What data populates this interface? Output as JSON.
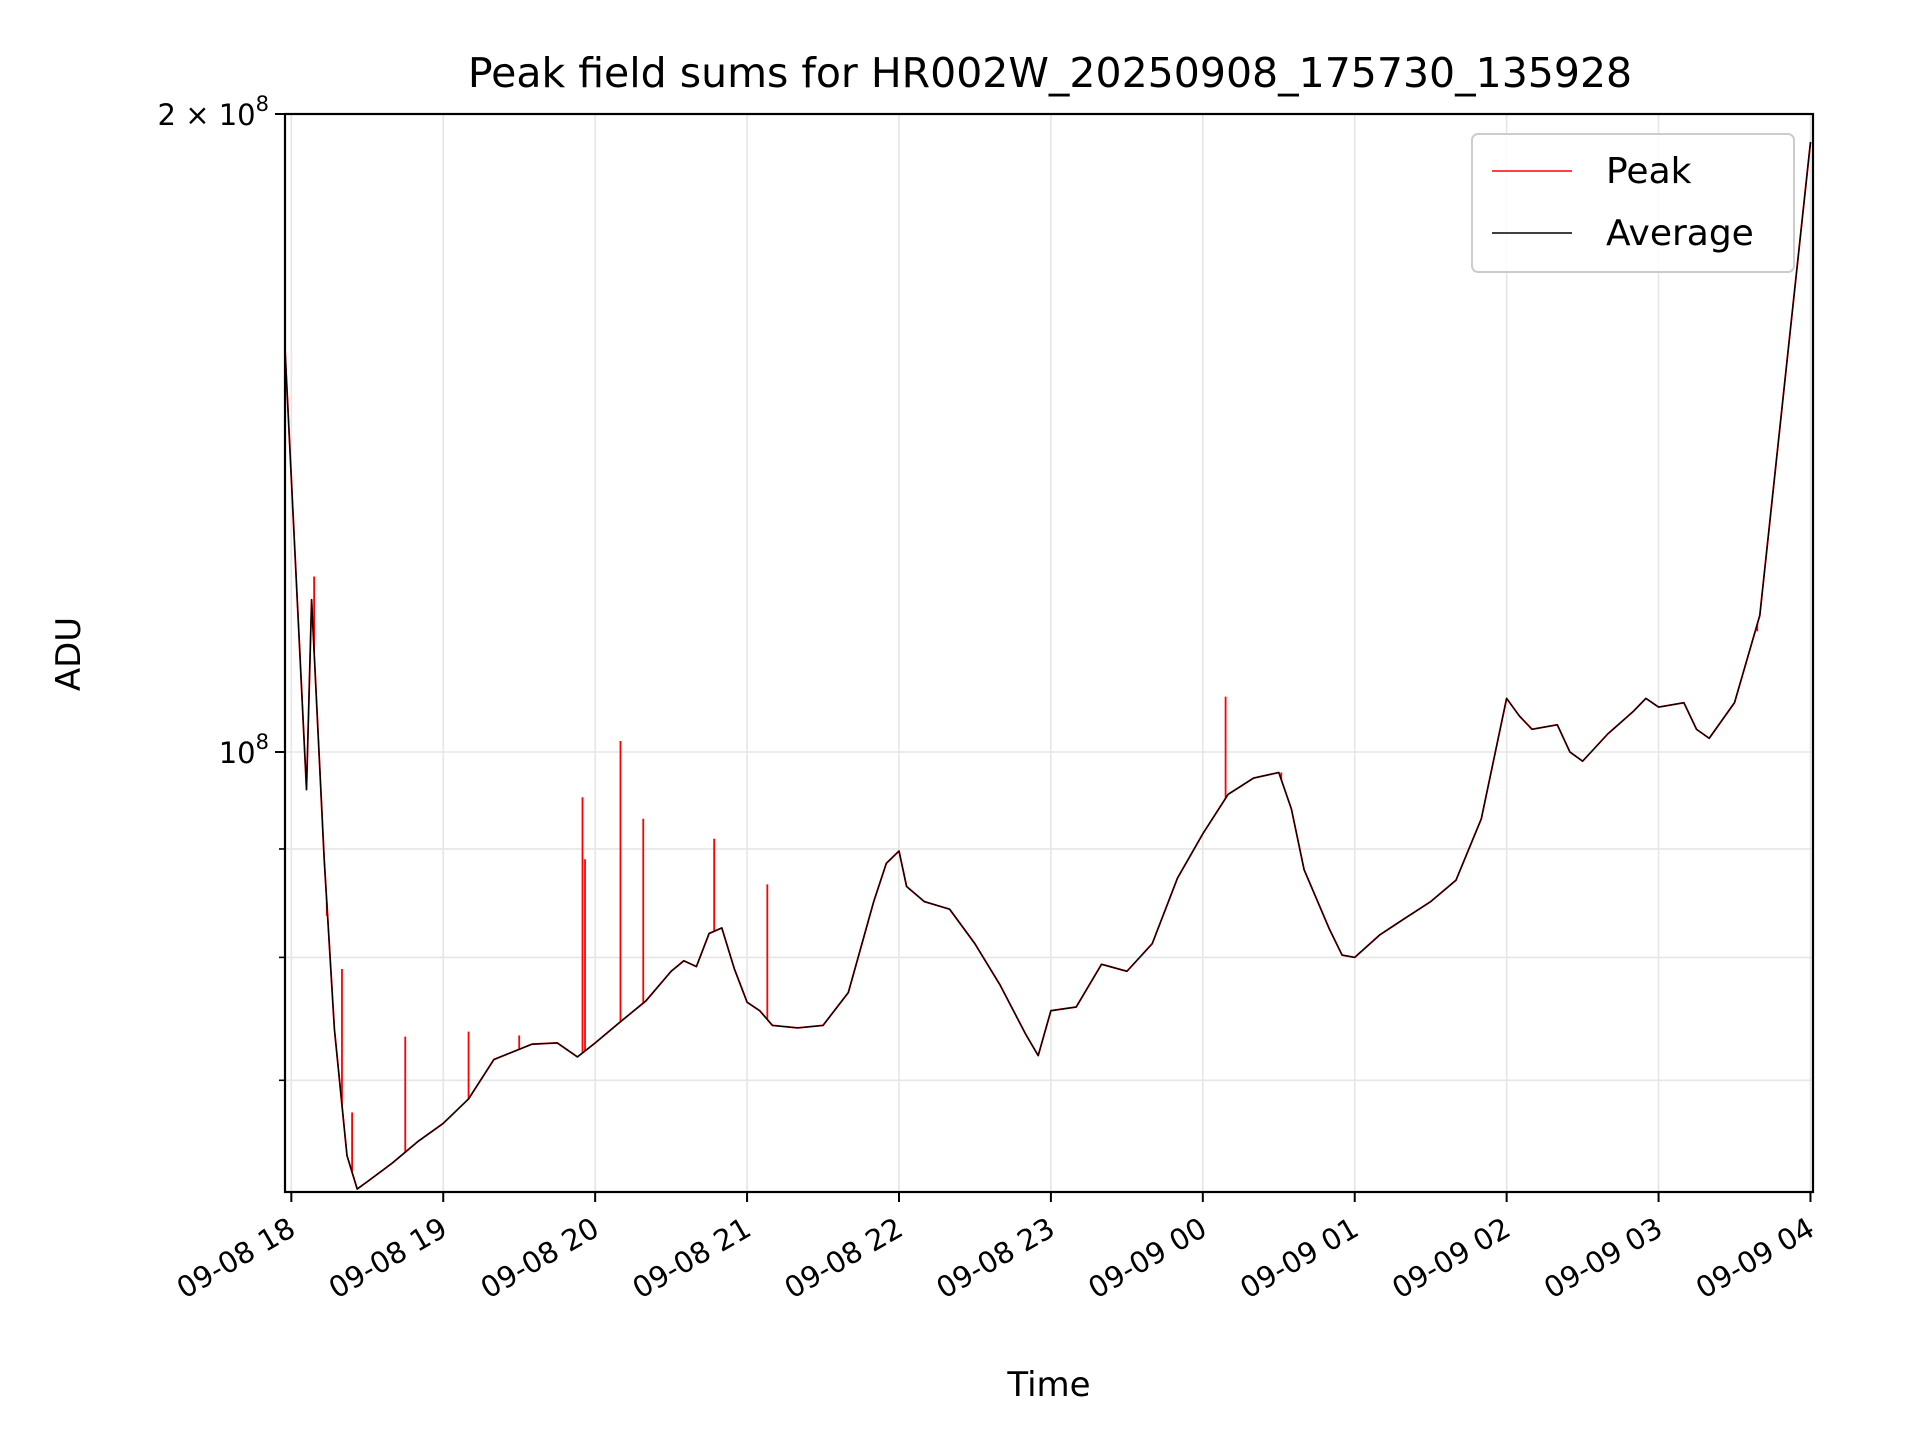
{
  "chart_data": {
    "type": "line",
    "title": "Peak field sums for HR002W_20250908_175730_135928",
    "xlabel": "Time",
    "ylabel": "ADU",
    "yscale": "log",
    "grid": true,
    "legend_position": "top-right",
    "xlim": [
      "2025-09-08 17:57:30",
      "2025-09-09 04:01:00"
    ],
    "ylim": [
      62000000,
      200000000
    ],
    "x_ticks": [
      {
        "t": "2025-09-08 18:00",
        "label": "09-08 18"
      },
      {
        "t": "2025-09-08 19:00",
        "label": "09-08 19"
      },
      {
        "t": "2025-09-08 20:00",
        "label": "09-08 20"
      },
      {
        "t": "2025-09-08 21:00",
        "label": "09-08 21"
      },
      {
        "t": "2025-09-08 22:00",
        "label": "09-08 22"
      },
      {
        "t": "2025-09-08 23:00",
        "label": "09-08 23"
      },
      {
        "t": "2025-09-09 00:00",
        "label": "09-09 00"
      },
      {
        "t": "2025-09-09 01:00",
        "label": "09-09 01"
      },
      {
        "t": "2025-09-09 02:00",
        "label": "09-09 02"
      },
      {
        "t": "2025-09-09 03:00",
        "label": "09-09 03"
      },
      {
        "t": "2025-09-09 04:00",
        "label": "09-09 04"
      }
    ],
    "y_major_ticks": [
      {
        "v": 100000000,
        "base": "10",
        "exp": "8",
        "coef": ""
      },
      {
        "v": 200000000,
        "base": "10",
        "exp": "8",
        "coef": "2 × "
      }
    ],
    "y_minor_ticks": [
      70000000,
      80000000,
      90000000
    ],
    "series": [
      {
        "name": "Average",
        "color": "#000000",
        "points": [
          [
            "2025-09-08 17:57:30",
            155000000
          ],
          [
            "2025-09-08 18:06:00",
            96000000
          ],
          [
            "2025-09-08 18:08:00",
            118000000
          ],
          [
            "2025-09-08 18:13:00",
            89000000
          ],
          [
            "2025-09-08 18:17:00",
            74000000
          ],
          [
            "2025-09-08 18:22:00",
            64500000
          ],
          [
            "2025-09-08 18:26:00",
            62200000
          ],
          [
            "2025-09-08 18:30:00",
            62700000
          ],
          [
            "2025-09-08 18:40:00",
            64000000
          ],
          [
            "2025-09-08 18:50:00",
            65500000
          ],
          [
            "2025-09-08 19:00:00",
            66800000
          ],
          [
            "2025-09-08 19:10:00",
            68600000
          ],
          [
            "2025-09-08 19:20:00",
            71600000
          ],
          [
            "2025-09-08 19:35:00",
            72800000
          ],
          [
            "2025-09-08 19:45:00",
            72900000
          ],
          [
            "2025-09-08 19:53:00",
            71800000
          ],
          [
            "2025-09-08 20:00:00",
            72900000
          ],
          [
            "2025-09-08 20:10:00",
            74600000
          ],
          [
            "2025-09-08 20:20:00",
            76300000
          ],
          [
            "2025-09-08 20:30:00",
            78800000
          ],
          [
            "2025-09-08 20:35:00",
            79700000
          ],
          [
            "2025-09-08 20:40:00",
            79200000
          ],
          [
            "2025-09-08 20:45:00",
            82100000
          ],
          [
            "2025-09-08 20:50:00",
            82600000
          ],
          [
            "2025-09-08 20:55:00",
            79000000
          ],
          [
            "2025-09-08 21:00:00",
            76200000
          ],
          [
            "2025-09-08 21:05:00",
            75500000
          ],
          [
            "2025-09-08 21:10:00",
            74300000
          ],
          [
            "2025-09-08 21:20:00",
            74100000
          ],
          [
            "2025-09-08 21:30:00",
            74300000
          ],
          [
            "2025-09-08 21:40:00",
            77000000
          ],
          [
            "2025-09-08 21:50:00",
            85000000
          ],
          [
            "2025-09-08 21:55:00",
            88600000
          ],
          [
            "2025-09-08 22:00:00",
            89800000
          ],
          [
            "2025-09-08 22:03:00",
            86400000
          ],
          [
            "2025-09-08 22:10:00",
            85000000
          ],
          [
            "2025-09-08 22:20:00",
            84300000
          ],
          [
            "2025-09-08 22:30:00",
            81200000
          ],
          [
            "2025-09-08 22:40:00",
            77600000
          ],
          [
            "2025-09-08 22:50:00",
            73600000
          ],
          [
            "2025-09-08 22:55:00",
            71900000
          ],
          [
            "2025-09-08 23:00:00",
            75500000
          ],
          [
            "2025-09-08 23:10:00",
            75800000
          ],
          [
            "2025-09-08 23:20:00",
            79400000
          ],
          [
            "2025-09-08 23:30:00",
            78800000
          ],
          [
            "2025-09-08 23:40:00",
            81200000
          ],
          [
            "2025-09-08 23:50:00",
            87200000
          ],
          [
            "2025-09-09 00:00:00",
            91500000
          ],
          [
            "2025-09-09 00:10:00",
            95500000
          ],
          [
            "2025-09-09 00:20:00",
            97200000
          ],
          [
            "2025-09-09 00:30:00",
            97800000
          ],
          [
            "2025-09-09 00:35:00",
            94000000
          ],
          [
            "2025-09-09 00:40:00",
            88000000
          ],
          [
            "2025-09-09 00:50:00",
            82500000
          ],
          [
            "2025-09-09 00:55:00",
            80200000
          ],
          [
            "2025-09-09 01:00:00",
            80000000
          ],
          [
            "2025-09-09 01:10:00",
            82000000
          ],
          [
            "2025-09-09 01:20:00",
            83500000
          ],
          [
            "2025-09-09 01:30:00",
            85000000
          ],
          [
            "2025-09-09 01:40:00",
            87000000
          ],
          [
            "2025-09-09 01:50:00",
            93000000
          ],
          [
            "2025-09-09 02:00:00",
            106000000
          ],
          [
            "2025-09-09 02:05:00",
            104000000
          ],
          [
            "2025-09-09 02:10:00",
            102500000
          ],
          [
            "2025-09-09 02:20:00",
            103000000
          ],
          [
            "2025-09-09 02:25:00",
            100000000
          ],
          [
            "2025-09-09 02:30:00",
            99000000
          ],
          [
            "2025-09-09 02:40:00",
            102000000
          ],
          [
            "2025-09-09 02:50:00",
            104500000
          ],
          [
            "2025-09-09 02:55:00",
            106000000
          ],
          [
            "2025-09-09 03:00:00",
            105000000
          ],
          [
            "2025-09-09 03:10:00",
            105500000
          ],
          [
            "2025-09-09 03:15:00",
            102500000
          ],
          [
            "2025-09-09 03:20:00",
            101500000
          ],
          [
            "2025-09-09 03:30:00",
            105500000
          ],
          [
            "2025-09-09 03:40:00",
            116000000
          ],
          [
            "2025-09-09 03:50:00",
            150000000
          ],
          [
            "2025-09-09 04:00:00",
            194000000
          ]
        ]
      },
      {
        "name": "Peak",
        "color": "#ff0000",
        "spikes": [
          [
            "2025-09-08 18:09:00",
            121000000
          ],
          [
            "2025-09-08 18:14:00",
            83700000
          ],
          [
            "2025-09-08 18:20:00",
            79000000
          ],
          [
            "2025-09-08 18:24:00",
            67600000
          ],
          [
            "2025-09-08 18:45:00",
            73400000
          ],
          [
            "2025-09-08 19:10:00",
            73800000
          ],
          [
            "2025-09-08 19:30:00",
            73500000
          ],
          [
            "2025-09-08 19:55:00",
            95200000
          ],
          [
            "2025-09-08 19:56:00",
            89000000
          ],
          [
            "2025-09-08 20:10:00",
            101200000
          ],
          [
            "2025-09-08 20:19:00",
            93000000
          ],
          [
            "2025-09-08 20:47:00",
            91000000
          ],
          [
            "2025-09-08 21:08:00",
            86600000
          ],
          [
            "2025-09-09 00:09:00",
            106200000
          ],
          [
            "2025-09-09 00:31:00",
            97800000
          ],
          [
            "2025-09-09 03:39:00",
            114000000
          ]
        ]
      }
    ]
  }
}
